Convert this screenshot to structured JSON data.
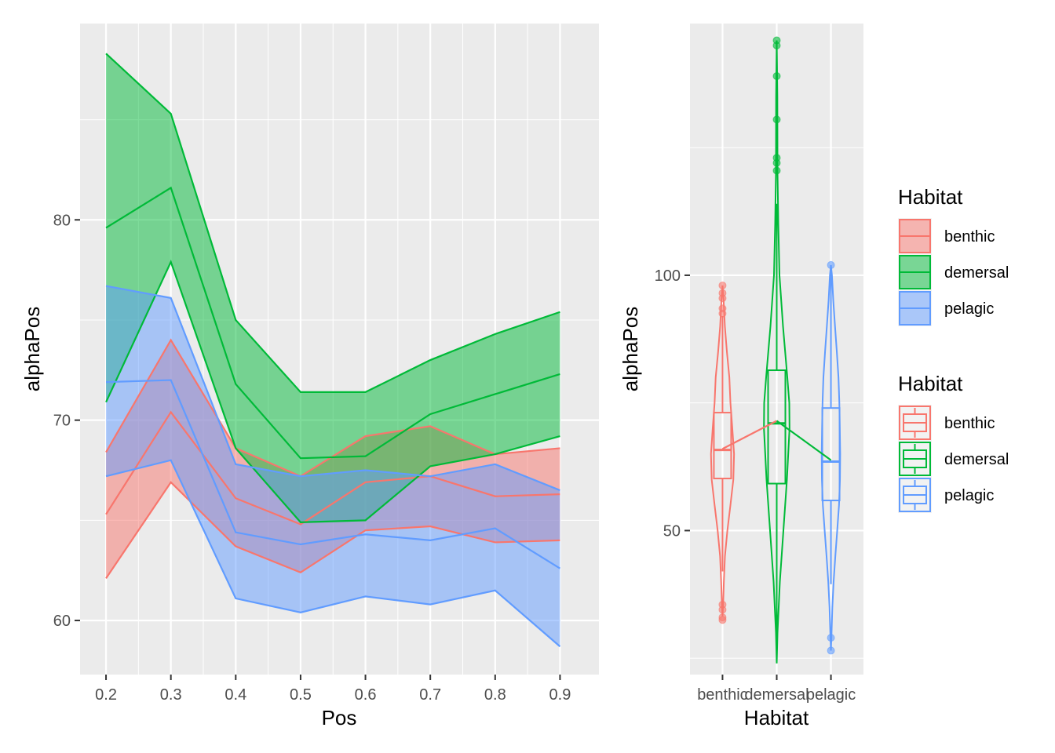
{
  "chart_data": [
    {
      "type": "area",
      "xlabel": "Pos",
      "ylabel": "alphaPos",
      "x": [
        0.2,
        0.3,
        0.4,
        0.5,
        0.6,
        0.7,
        0.8,
        0.9
      ],
      "x_ticks": [
        "0.2",
        "0.3",
        "0.4",
        "0.5",
        "0.6",
        "0.7",
        "0.8",
        "0.9"
      ],
      "xlim": [
        0.16,
        0.96
      ],
      "y_ticks": [
        60,
        70,
        80
      ],
      "ylim": [
        57.3,
        89.8
      ],
      "grid": true,
      "series": [
        {
          "name": "benthic",
          "color": "#F8766D",
          "mean": [
            65.3,
            70.4,
            66.1,
            64.8,
            66.9,
            67.2,
            66.2,
            66.3
          ],
          "lower": [
            62.1,
            66.9,
            63.7,
            62.4,
            64.5,
            64.7,
            63.9,
            64.0
          ],
          "upper": [
            68.4,
            74.0,
            68.6,
            67.2,
            69.2,
            69.7,
            68.3,
            68.6
          ]
        },
        {
          "name": "demersal",
          "color": "#00BA38",
          "mean": [
            79.6,
            81.6,
            71.8,
            68.1,
            68.2,
            70.3,
            71.3,
            72.3
          ],
          "lower": [
            70.9,
            77.9,
            68.6,
            64.9,
            65.0,
            67.7,
            68.3,
            69.2
          ],
          "upper": [
            88.3,
            85.3,
            75.0,
            71.4,
            71.4,
            73.0,
            74.3,
            75.4
          ]
        },
        {
          "name": "pelagic",
          "color": "#619CFF",
          "mean": [
            71.9,
            72.0,
            64.4,
            63.8,
            64.3,
            64.0,
            64.6,
            62.6
          ],
          "lower": [
            67.2,
            68.0,
            61.1,
            60.4,
            61.2,
            60.8,
            61.5,
            58.7
          ],
          "upper": [
            76.7,
            76.1,
            67.8,
            67.2,
            67.5,
            67.2,
            67.8,
            66.5
          ]
        }
      ]
    },
    {
      "type": "box",
      "xlabel": "Habitat",
      "ylabel": "alphaPos",
      "categories": [
        "benthic",
        "demersal",
        "pelagic"
      ],
      "y_ticks": [
        50,
        100
      ],
      "ylim": [
        21.8,
        149.3
      ],
      "grid": true,
      "boxes": [
        {
          "name": "benthic",
          "color": "#F8766D",
          "median": 65.8,
          "q1": 60.2,
          "q3": 73.1,
          "whisker_low": 42.0,
          "whisker_high": 92.0,
          "mean": 66.0,
          "outliers": [
            98.0,
            96.5,
            95.5,
            93.5,
            92.5,
            35.5,
            34.5,
            33.0,
            32.5
          ],
          "violin": [
            [
              33.2,
              0.0
            ],
            [
              36.0,
              0.9
            ],
            [
              40.0,
              1.7
            ],
            [
              45.0,
              3.1
            ],
            [
              50.0,
              6.2
            ],
            [
              55.0,
              10.1
            ],
            [
              60.0,
              13.8
            ],
            [
              65.0,
              14.7
            ],
            [
              70.0,
              12.5
            ],
            [
              75.0,
              10.1
            ],
            [
              80.0,
              8.7
            ],
            [
              85.0,
              5.6
            ],
            [
              90.0,
              3.0
            ],
            [
              95.0,
              1.4
            ],
            [
              98.0,
              0.0
            ]
          ]
        },
        {
          "name": "demersal",
          "color": "#00BA38",
          "median": 71.0,
          "q1": 59.2,
          "q3": 81.4,
          "whisker_low": 26.0,
          "whisker_high": 114.0,
          "mean": 71.5,
          "outliers": [
            146.0,
            145.0,
            139.0,
            130.5,
            123.0,
            122.0,
            120.5
          ],
          "violin": [
            [
              24.0,
              0.0
            ],
            [
              30.0,
              1.0
            ],
            [
              40.0,
              4.0
            ],
            [
              50.0,
              8.5
            ],
            [
              60.0,
              13.0
            ],
            [
              70.0,
              16.3
            ],
            [
              75.0,
              16.0
            ],
            [
              80.0,
              13.5
            ],
            [
              90.0,
              8.0
            ],
            [
              100.0,
              3.5
            ],
            [
              110.0,
              2.0
            ],
            [
              120.0,
              1.0
            ],
            [
              135.0,
              0.8
            ],
            [
              146.0,
              0.0
            ]
          ]
        },
        {
          "name": "pelagic",
          "color": "#619CFF",
          "median": 63.5,
          "q1": 55.9,
          "q3": 74.0,
          "whisker_low": 39.5,
          "whisker_high": 101.0,
          "mean": 63.8,
          "outliers": [
            102.0,
            29.0,
            26.5
          ],
          "violin": [
            [
              26.5,
              0.0
            ],
            [
              30.0,
              0.8
            ],
            [
              35.0,
              1.8
            ],
            [
              40.0,
              3.4
            ],
            [
              45.0,
              5.6
            ],
            [
              50.0,
              8.0
            ],
            [
              55.0,
              10.3
            ],
            [
              60.0,
              11.5
            ],
            [
              65.0,
              11.8
            ],
            [
              70.0,
              11.3
            ],
            [
              75.0,
              10.7
            ],
            [
              80.0,
              9.6
            ],
            [
              85.0,
              7.5
            ],
            [
              90.0,
              5.2
            ],
            [
              95.0,
              3.0
            ],
            [
              100.0,
              1.3
            ],
            [
              102.0,
              0.0
            ]
          ]
        }
      ]
    }
  ],
  "legends": [
    {
      "title": "Habitat",
      "items": [
        "benthic",
        "demersal",
        "pelagic"
      ]
    },
    {
      "title": "Habitat",
      "items": [
        "benthic",
        "demersal",
        "pelagic"
      ]
    }
  ]
}
